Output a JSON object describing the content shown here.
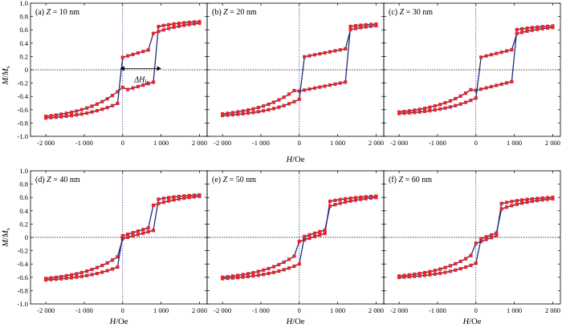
{
  "figure": {
    "xlabel_main": "H",
    "xlabel_unit": "/Oe",
    "ylabel_main": "M",
    "ylabel_sep": "/",
    "ylabel_sub_main": "M",
    "ylabel_sub": "s",
    "marker_color": "#e8262a",
    "line_color": "#1f2d7a"
  },
  "chart_data": [
    {
      "type": "line",
      "label": "(a) ",
      "zlabel": "Z",
      "zvalue": " = 10 nm",
      "xlim": [
        -2400,
        2200
      ],
      "ylim": [
        -1.0,
        1.0
      ],
      "xticks": [
        "-2 000",
        "-1 000",
        "0",
        "1 000",
        "2 000"
      ],
      "yticks": [
        "-1.0",
        "-0.8",
        "-0.6",
        "-0.4",
        "-0.2",
        "0",
        "0.2",
        "0.4",
        "0.6",
        "0.8",
        "1.0"
      ],
      "Ms": 0.76,
      "Hdesc": -100,
      "Hasc": 900,
      "Wd": 850,
      "Wa": 850,
      "Ld": -0.22,
      "La": -0.22,
      "annotation": {
        "main": "ΔH",
        "sub": "fc",
        "x1": -60,
        "x2": 1000,
        "y": 0.02
      }
    },
    {
      "type": "line",
      "label": "(b) ",
      "zlabel": "Z",
      "zvalue": " = 20 nm",
      "xlim": [
        -2400,
        2200
      ],
      "ylim": [
        -1.0,
        1.0
      ],
      "xticks": [
        "-2 000",
        "-1 000",
        "0",
        "1 000",
        "2 000"
      ],
      "Ms": 0.72,
      "Hdesc": 0,
      "Hasc": 1250,
      "Wd": 1250,
      "Wa": 1250,
      "Ld": -0.23,
      "La": -0.23
    },
    {
      "type": "line",
      "label": "(c) ",
      "zlabel": "Z",
      "zvalue": " = 30 nm",
      "xlim": [
        -2400,
        2200
      ],
      "ylim": [
        -1.0,
        1.0
      ],
      "xticks": [
        "-2 000",
        "-1 000",
        "0",
        "1 000",
        "2 000"
      ],
      "Ms": 0.69,
      "Hdesc": 0,
      "Hasc": 1000,
      "Wd": 1000,
      "Wa": 1000,
      "Ld": -0.22,
      "La": -0.22
    },
    {
      "type": "line",
      "label": "(d) ",
      "zlabel": "Z",
      "zvalue": " = 40 nm",
      "xlim": [
        -2400,
        2200
      ],
      "ylim": [
        -1.0,
        1.0
      ],
      "xticks": [
        "-2 000",
        "-1 000",
        "0",
        "1 000",
        "2 000"
      ],
      "yticks": [
        "-1.0",
        "-0.8",
        "-0.6",
        "-0.4",
        "-0.2",
        "0",
        "0.2",
        "0.4",
        "0.6",
        "0.8",
        "1.0"
      ],
      "Ms": 0.67,
      "Hdesc": -80,
      "Hasc": 900,
      "Wd": 800,
      "Wa": 900,
      "Ld": -0.06,
      "La": 0.07
    },
    {
      "type": "line",
      "label": "(e) ",
      "zlabel": "Z",
      "zvalue": " = 50 nm",
      "xlim": [
        -2400,
        2200
      ],
      "ylim": [
        -1.0,
        1.0
      ],
      "xticks": [
        "-2 000",
        "-1 000",
        "0",
        "1 000",
        "2 000"
      ],
      "Ms": 0.65,
      "Hdesc": 0,
      "Hasc": 780,
      "Wd": 780,
      "Wa": 780,
      "Ld": -0.04,
      "La": 0.03
    },
    {
      "type": "line",
      "label": "(f) ",
      "zlabel": "Z",
      "zvalue": " = 60 nm",
      "xlim": [
        -2400,
        2200
      ],
      "ylim": [
        -1.0,
        1.0
      ],
      "xticks": [
        "-2 000",
        "-1 000",
        "0",
        "1 000",
        "2 000"
      ],
      "Ms": 0.63,
      "Hdesc": 0,
      "Hasc": 650,
      "Wd": 650,
      "Wa": 650,
      "Ld": 0.0,
      "La": 0.0
    }
  ]
}
